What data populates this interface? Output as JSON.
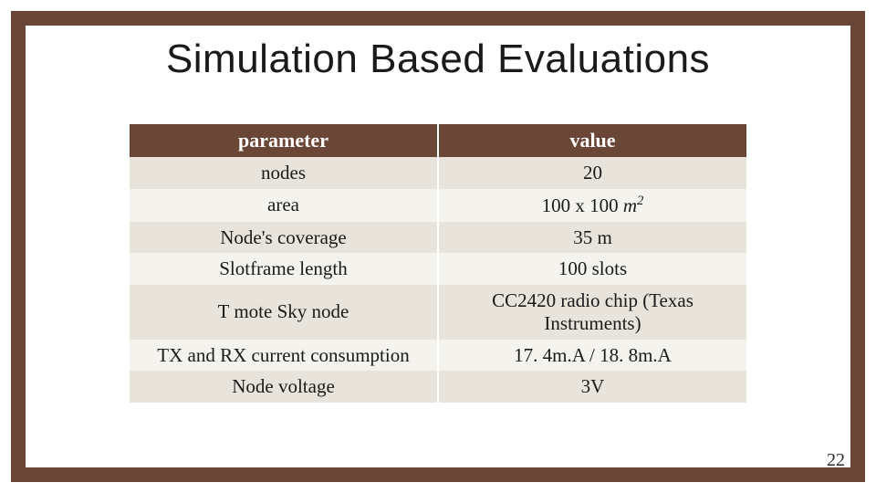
{
  "title": "Simulation Based Evaluations",
  "title_fontsize": 44,
  "page_number": "22",
  "page_number_fontsize": 20,
  "frame": {
    "border_color": "#6a4636",
    "border_width": 16
  },
  "table": {
    "type": "table",
    "header_bg": "#6a4636",
    "header_fg": "#ffffff",
    "row_bg_odd": "#e8e4db",
    "row_bg_even": "#f5f3ee",
    "cell_fg": "#1a1a1a",
    "header_fontsize": 22,
    "cell_fontsize": 21,
    "column_widths": [
      "50%",
      "50%"
    ],
    "columns": [
      "parameter",
      "value"
    ],
    "rows": [
      {
        "param": "nodes",
        "value": "20"
      },
      {
        "param": "area",
        "value_html": "100 x 100 <span class='math-m'>m</span><span class='sup'>2</span>"
      },
      {
        "param": "Node's coverage",
        "value": "35 m"
      },
      {
        "param": "Slotframe length",
        "value": "100 slots"
      },
      {
        "param": "T mote Sky node",
        "value": "CC2420 radio chip (Texas Instruments)"
      },
      {
        "param": "TX and RX current consumption",
        "value": "17. 4m.A / 18. 8m.A"
      },
      {
        "param": "Node voltage",
        "value": "3V"
      }
    ]
  }
}
